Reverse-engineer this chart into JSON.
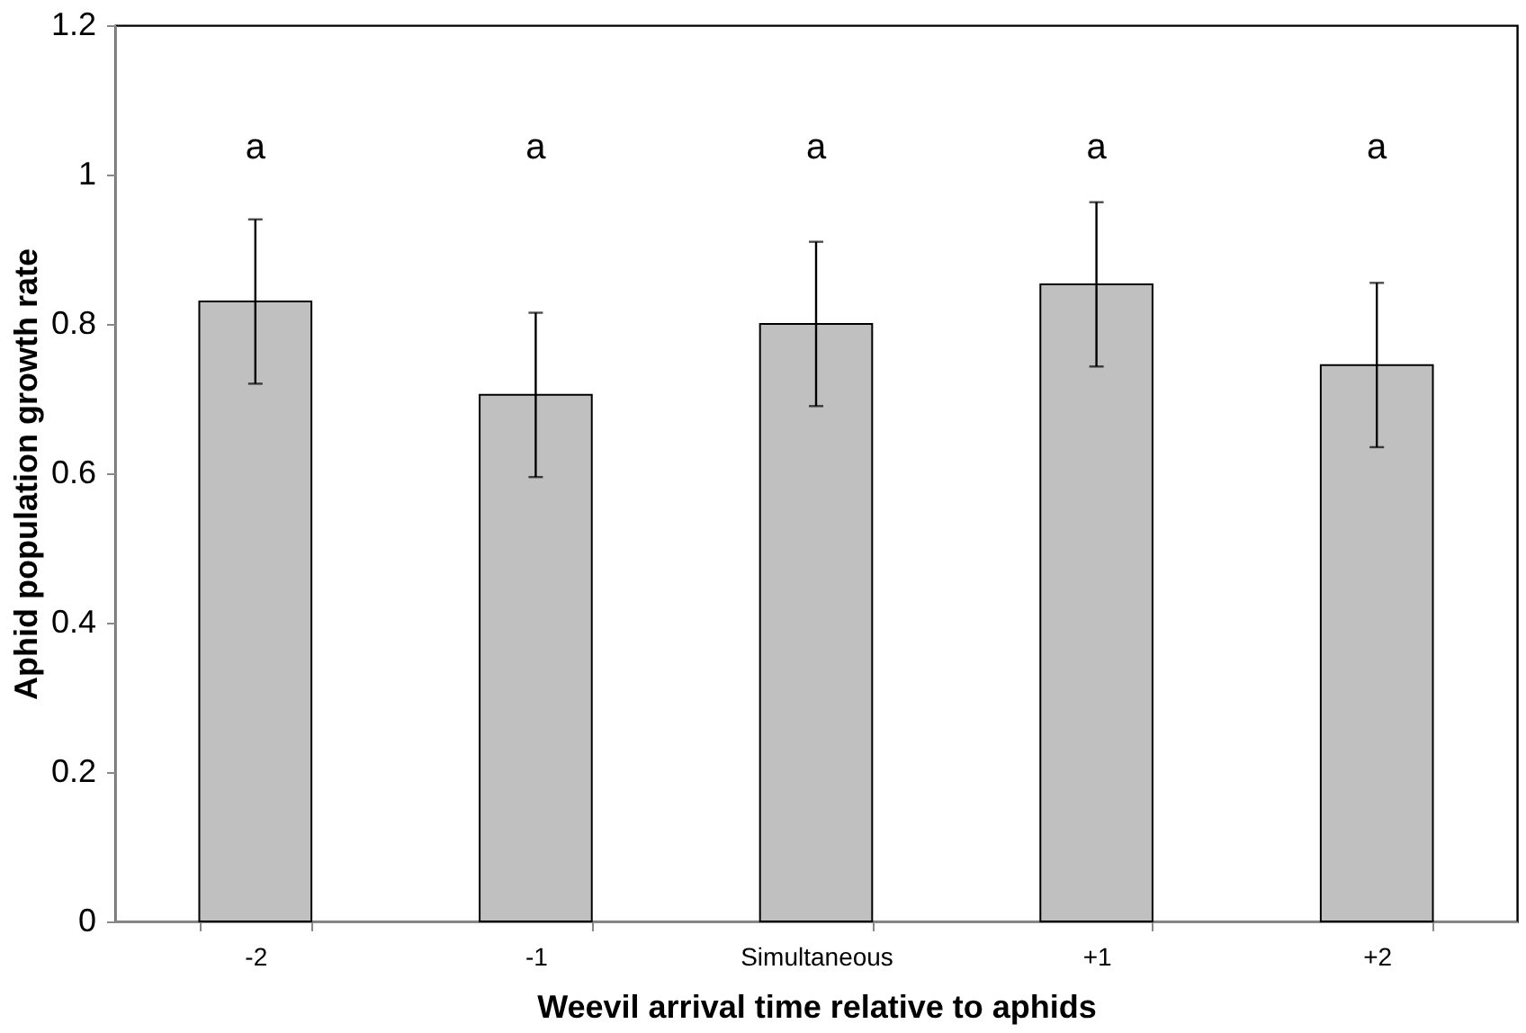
{
  "chart_data": {
    "type": "bar",
    "xlabel": "Weevil arrival time relative to aphids",
    "ylabel": "Aphid population  growth rate",
    "categories": [
      "-2",
      "-1",
      "Simultaneous",
      "+1",
      "+2"
    ],
    "values": [
      0.83,
      0.705,
      0.8,
      0.853,
      0.745
    ],
    "errors": [
      0.11,
      0.11,
      0.11,
      0.11,
      0.11
    ],
    "color": "#c0c0c0",
    "ylim": [
      0,
      1.2
    ],
    "yticks": [
      0,
      0.2,
      0.4,
      0.6,
      0.8,
      1,
      1.2
    ],
    "grid": false,
    "annotations": [
      "a",
      "a",
      "a",
      "a",
      "a"
    ]
  }
}
